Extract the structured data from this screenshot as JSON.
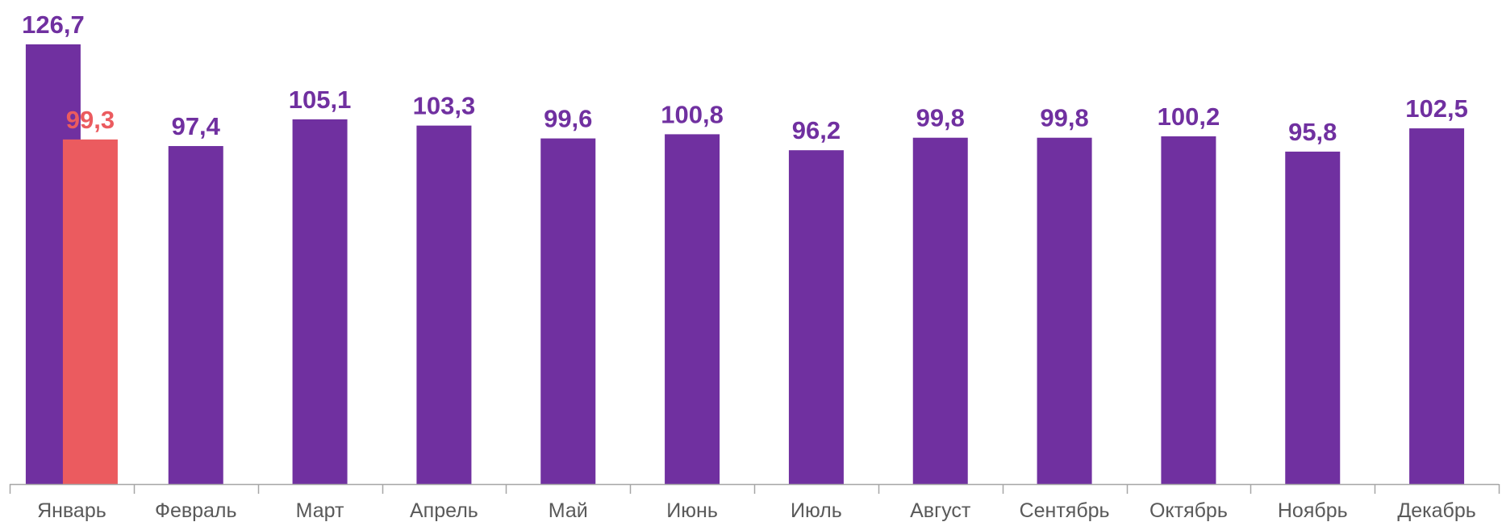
{
  "chart_data": {
    "type": "bar",
    "categories": [
      "Январь",
      "Февраль",
      "Март",
      "Апрель",
      "Май",
      "Июнь",
      "Июль",
      "Август",
      "Сентябрь",
      "Октябрь",
      "Ноябрь",
      "Декабрь"
    ],
    "series": [
      {
        "values": [
          126.7,
          97.4,
          105.1,
          103.3,
          99.6,
          100.8,
          96.2,
          99.8,
          99.8,
          100.2,
          95.8,
          102.5
        ],
        "labels": [
          "126,7",
          "97,4",
          "105,1",
          "103,3",
          "99,6",
          "100,8",
          "96,2",
          "99,8",
          "99,8",
          "100,2",
          "95,8",
          "102,5"
        ],
        "color": "#7030a0"
      },
      {
        "values": [
          99.3,
          null,
          null,
          null,
          null,
          null,
          null,
          null,
          null,
          null,
          null,
          null
        ],
        "labels": [
          "99,3",
          "",
          "",
          "",
          "",
          "",
          "",
          "",
          "",
          "",
          "",
          ""
        ],
        "color": "#eb5b5f"
      }
    ],
    "title": "",
    "xlabel": "",
    "ylabel": "",
    "ylim": [
      0,
      126.7
    ],
    "grid": false,
    "legend": "none",
    "axis_color": "#a6a6a6",
    "tick_label_color": "#595959"
  }
}
